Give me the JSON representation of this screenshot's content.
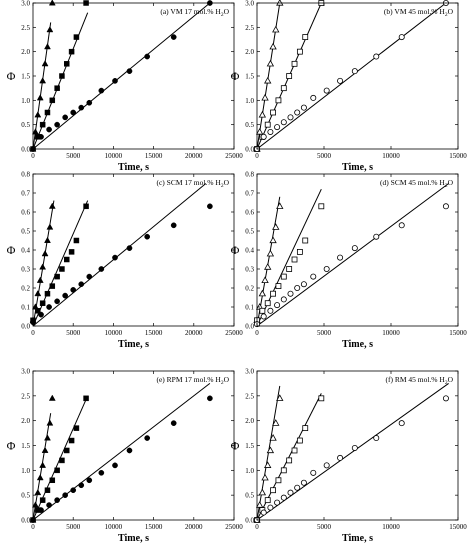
{
  "chart_data": [
    {
      "type": "scatter",
      "title": "(a) VM 17 mol.% H2O",
      "title_parts": [
        "(a) VM 17 mol.% H",
        "2",
        "O"
      ],
      "xlabel": "Time, s",
      "ylabel": "Φ",
      "xlim": [
        0,
        25000
      ],
      "ylim": [
        0,
        3.0
      ],
      "xticks": [
        "0",
        "5000",
        "10000",
        "15000",
        "20000",
        "25000"
      ],
      "yticks": [
        "0.0",
        "0.5",
        "1.0",
        "1.5",
        "2.0",
        "2.5",
        "3.0"
      ],
      "fill": "filled",
      "series": [
        {
          "marker": "triangle",
          "x": [
            0,
            300,
            600,
            900,
            1200,
            1500,
            1800,
            2100,
            2400
          ],
          "y": [
            0,
            0.35,
            0.7,
            1.05,
            1.4,
            1.75,
            2.1,
            2.45,
            3.0
          ],
          "fit": [
            [
              0,
              0
            ],
            [
              2200,
              2.6
            ]
          ]
        },
        {
          "marker": "square",
          "x": [
            0,
            600,
            1200,
            1800,
            2400,
            3000,
            3600,
            4200,
            4800,
            5400,
            6600
          ],
          "y": [
            0,
            0.25,
            0.5,
            0.75,
            1.0,
            1.25,
            1.5,
            1.75,
            2.0,
            2.3,
            3.0
          ],
          "fit": [
            [
              0,
              0
            ],
            [
              6800,
              2.8
            ]
          ]
        },
        {
          "marker": "circle",
          "x": [
            0,
            1000,
            2000,
            3000,
            4000,
            5000,
            6000,
            7000,
            8500,
            10200,
            12000,
            14200,
            17500,
            22000
          ],
          "y": [
            0,
            0.25,
            0.4,
            0.5,
            0.65,
            0.75,
            0.85,
            0.95,
            1.2,
            1.4,
            1.6,
            1.9,
            2.3,
            3.0
          ],
          "fit": [
            [
              0,
              0
            ],
            [
              22000,
              3.0
            ]
          ]
        }
      ]
    },
    {
      "type": "scatter",
      "title": "(b) VM 45 mol.% H2O",
      "title_parts": [
        "(b) VM 45 mol.% H",
        "2",
        "O"
      ],
      "xlabel": "Time, s",
      "ylabel": "Φ",
      "xlim": [
        0,
        15000
      ],
      "ylim": [
        0,
        3.0
      ],
      "xticks": [
        "0",
        "5000",
        "10000",
        "15000"
      ],
      "yticks": [
        "0.0",
        "0.5",
        "1.0",
        "1.5",
        "2.0",
        "2.5",
        "3.0"
      ],
      "fill": "open",
      "series": [
        {
          "marker": "triangle",
          "x": [
            0,
            200,
            400,
            600,
            800,
            1000,
            1200,
            1400,
            1700
          ],
          "y": [
            0,
            0.35,
            0.7,
            1.05,
            1.4,
            1.75,
            2.1,
            2.45,
            3.0
          ],
          "fit": [
            [
              0,
              0
            ],
            [
              1700,
              3.0
            ]
          ]
        },
        {
          "marker": "square",
          "x": [
            0,
            400,
            800,
            1200,
            1600,
            2000,
            2400,
            2800,
            3200,
            3600,
            4800
          ],
          "y": [
            0,
            0.25,
            0.5,
            0.75,
            1.0,
            1.25,
            1.5,
            1.75,
            2.0,
            2.3,
            3.0
          ],
          "fit": [
            [
              0,
              0
            ],
            [
              4800,
              3.0
            ]
          ]
        },
        {
          "marker": "circle",
          "x": [
            0,
            500,
            1000,
            1500,
            2000,
            2500,
            3000,
            3500,
            4200,
            5200,
            6200,
            7300,
            8900,
            10800,
            14100
          ],
          "y": [
            0,
            0.25,
            0.35,
            0.45,
            0.55,
            0.65,
            0.75,
            0.85,
            1.05,
            1.2,
            1.4,
            1.6,
            1.9,
            2.3,
            3.0
          ],
          "fit": [
            [
              0,
              0
            ],
            [
              14100,
              3.0
            ]
          ]
        }
      ]
    },
    {
      "type": "scatter",
      "title": "(c) SCM 17 mol.% H2O",
      "title_parts": [
        "(c) SCM 17 mol.% H",
        "2",
        "O"
      ],
      "xlabel": "Time, s",
      "ylabel": "Φ",
      "xlim": [
        0,
        25000
      ],
      "ylim": [
        0,
        0.8
      ],
      "xticks": [
        "0",
        "5000",
        "10000",
        "15000",
        "20000",
        "25000"
      ],
      "yticks": [
        "0.0",
        "0.1",
        "0.2",
        "0.3",
        "0.4",
        "0.5",
        "0.6",
        "0.7",
        "0.8"
      ],
      "fill": "filled",
      "series": [
        {
          "marker": "triangle",
          "x": [
            0,
            300,
            600,
            900,
            1200,
            1500,
            1800,
            2100,
            2400
          ],
          "y": [
            0.03,
            0.1,
            0.17,
            0.24,
            0.31,
            0.38,
            0.45,
            0.52,
            0.63
          ],
          "fit": [
            [
              0,
              0
            ],
            [
              2600,
              0.66
            ]
          ]
        },
        {
          "marker": "square",
          "x": [
            0,
            600,
            1200,
            1800,
            2400,
            3000,
            3600,
            4200,
            4800,
            5400,
            6600
          ],
          "y": [
            0.03,
            0.08,
            0.12,
            0.17,
            0.21,
            0.26,
            0.3,
            0.35,
            0.39,
            0.45,
            0.63
          ],
          "fit": [
            [
              0,
              0
            ],
            [
              6800,
              0.66
            ]
          ]
        },
        {
          "marker": "circle",
          "x": [
            0,
            1000,
            2000,
            3000,
            4000,
            5000,
            6000,
            7000,
            8500,
            10200,
            12000,
            14200,
            17500,
            22000
          ],
          "y": [
            0.02,
            0.06,
            0.1,
            0.13,
            0.16,
            0.19,
            0.22,
            0.26,
            0.3,
            0.36,
            0.41,
            0.47,
            0.53,
            0.63
          ],
          "fit": [
            [
              0,
              0
            ],
            [
              21500,
              0.75
            ]
          ]
        }
      ]
    },
    {
      "type": "scatter",
      "title": "(d) SCM 45 mol.% H2O",
      "title_parts": [
        "(d) SCM 45 mol.% H",
        "2",
        "O"
      ],
      "xlabel": "Time, s",
      "ylabel": "Φ",
      "xlim": [
        0,
        15000
      ],
      "ylim": [
        0,
        0.8
      ],
      "xticks": [
        "0",
        "5000",
        "10000",
        "15000"
      ],
      "yticks": [
        "0.0",
        "0.1",
        "0.2",
        "0.3",
        "0.4",
        "0.5",
        "0.6",
        "0.7",
        "0.8"
      ],
      "fill": "open",
      "series": [
        {
          "marker": "triangle",
          "x": [
            0,
            200,
            400,
            600,
            800,
            1000,
            1200,
            1400,
            1700
          ],
          "y": [
            0.03,
            0.1,
            0.17,
            0.24,
            0.31,
            0.38,
            0.45,
            0.52,
            0.63
          ],
          "fit": [
            [
              0,
              0
            ],
            [
              1700,
              0.68
            ]
          ]
        },
        {
          "marker": "square",
          "x": [
            0,
            400,
            800,
            1200,
            1600,
            2000,
            2400,
            2800,
            3200,
            3600,
            4800
          ],
          "y": [
            0.03,
            0.08,
            0.12,
            0.17,
            0.21,
            0.26,
            0.3,
            0.35,
            0.39,
            0.45,
            0.63
          ],
          "fit": [
            [
              0,
              0
            ],
            [
              4800,
              0.72
            ]
          ]
        },
        {
          "marker": "circle",
          "x": [
            0,
            500,
            1000,
            1500,
            2000,
            2500,
            3000,
            3500,
            4200,
            5200,
            6200,
            7300,
            8900,
            10800,
            14100
          ],
          "y": [
            0.01,
            0.05,
            0.08,
            0.11,
            0.14,
            0.17,
            0.2,
            0.22,
            0.26,
            0.3,
            0.36,
            0.41,
            0.47,
            0.53,
            0.63
          ],
          "fit": [
            [
              0,
              0
            ],
            [
              14300,
              0.75
            ]
          ]
        }
      ]
    },
    {
      "type": "scatter",
      "title": "(e) RPM 17 mol.% H2O",
      "title_parts": [
        "(e) RPM 17 mol.% H",
        "2",
        "O"
      ],
      "xlabel": "Time, s",
      "ylabel": "Φ",
      "xlim": [
        0,
        25000
      ],
      "ylim": [
        0,
        3.0
      ],
      "xticks": [
        "0",
        "5000",
        "10000",
        "15000",
        "20000",
        "25000"
      ],
      "yticks": [
        "0.0",
        "0.5",
        "1.0",
        "1.5",
        "2.0",
        "2.5",
        "3.0"
      ],
      "fill": "filled",
      "series": [
        {
          "marker": "triangle",
          "x": [
            0,
            300,
            600,
            900,
            1200,
            1500,
            1800,
            2100,
            2400
          ],
          "y": [
            0,
            0.3,
            0.55,
            0.85,
            1.1,
            1.4,
            1.65,
            1.95,
            2.45
          ],
          "fit": [
            [
              0,
              0
            ],
            [
              2200,
              2.15
            ]
          ]
        },
        {
          "marker": "square",
          "x": [
            0,
            600,
            1200,
            1800,
            2400,
            3000,
            3600,
            4200,
            4800,
            5400,
            6600
          ],
          "y": [
            0,
            0.2,
            0.4,
            0.6,
            0.8,
            1.0,
            1.2,
            1.4,
            1.6,
            1.85,
            2.45
          ],
          "fit": [
            [
              0,
              0
            ],
            [
              6800,
              2.5
            ]
          ]
        },
        {
          "marker": "circle",
          "x": [
            0,
            1000,
            2000,
            3000,
            4000,
            5000,
            6000,
            7000,
            8500,
            10200,
            12000,
            14200,
            17500,
            22000
          ],
          "y": [
            0,
            0.2,
            0.3,
            0.4,
            0.5,
            0.6,
            0.7,
            0.8,
            0.95,
            1.1,
            1.4,
            1.65,
            1.95,
            2.45
          ],
          "fit": [
            [
              0,
              0
            ],
            [
              22000,
              2.75
            ]
          ]
        }
      ]
    },
    {
      "type": "scatter",
      "title": "(f) RM 45 mol.% H2O",
      "title_parts": [
        "(f) RM 45 mol.% H",
        "2",
        "O"
      ],
      "xlabel": "Time, s",
      "ylabel": "Φ",
      "xlim": [
        0,
        15000
      ],
      "ylim": [
        0,
        3.0
      ],
      "xticks": [
        "0",
        "5000",
        "10000",
        "15000"
      ],
      "yticks": [
        "0.0",
        "0.5",
        "1.0",
        "1.5",
        "2.0",
        "2.5",
        "3.0"
      ],
      "fill": "open",
      "series": [
        {
          "marker": "triangle",
          "x": [
            0,
            200,
            400,
            600,
            800,
            1000,
            1200,
            1400,
            1700
          ],
          "y": [
            0,
            0.3,
            0.55,
            0.85,
            1.1,
            1.4,
            1.65,
            1.95,
            2.45
          ],
          "fit": [
            [
              0,
              0
            ],
            [
              1700,
              2.7
            ]
          ]
        },
        {
          "marker": "square",
          "x": [
            0,
            400,
            800,
            1200,
            1600,
            2000,
            2400,
            2800,
            3200,
            3600,
            4800
          ],
          "y": [
            0,
            0.2,
            0.4,
            0.6,
            0.8,
            1.0,
            1.2,
            1.4,
            1.6,
            1.85,
            2.45
          ],
          "fit": [
            [
              0,
              0
            ],
            [
              4800,
              2.55
            ]
          ]
        },
        {
          "marker": "circle",
          "x": [
            0,
            500,
            1000,
            1500,
            2000,
            2500,
            3000,
            3500,
            4200,
            5200,
            6200,
            7300,
            8900,
            10800,
            14100
          ],
          "y": [
            0,
            0.15,
            0.25,
            0.35,
            0.45,
            0.55,
            0.65,
            0.75,
            0.95,
            1.1,
            1.25,
            1.45,
            1.65,
            1.95,
            2.45
          ],
          "fit": [
            [
              0,
              0
            ],
            [
              14300,
              2.75
            ]
          ]
        }
      ]
    }
  ]
}
